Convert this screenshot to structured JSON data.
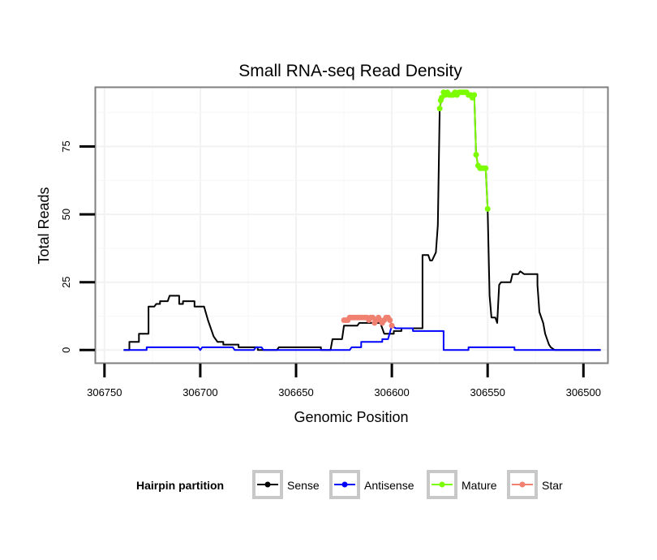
{
  "chart_data": {
    "type": "line",
    "title": "Small RNA-seq Read Density",
    "xlabel": "Genomic Position",
    "ylabel": "Total Reads",
    "x_reversed": true,
    "xlim": [
      306755,
      306487
    ],
    "ylim": [
      -5,
      97
    ],
    "x_ticks": [
      306750,
      306700,
      306650,
      306600,
      306550,
      306500
    ],
    "y_ticks": [
      0,
      25,
      50,
      75
    ],
    "grid": true,
    "legend": {
      "title": "Hairpin partition",
      "position": "bottom",
      "entries": [
        {
          "name": "Sense",
          "color": "#000000"
        },
        {
          "name": "Antisense",
          "color": "#0000ff"
        },
        {
          "name": "Mature",
          "color": "#7cfc00"
        },
        {
          "name": "Star",
          "color": "#f08070"
        }
      ]
    },
    "series": [
      {
        "name": "Sense",
        "color": "#000000",
        "points": [
          [
            306740,
            0
          ],
          [
            306737,
            0
          ],
          [
            306737,
            3
          ],
          [
            306732,
            3
          ],
          [
            306732,
            6
          ],
          [
            306727,
            6
          ],
          [
            306727,
            16
          ],
          [
            306724,
            16
          ],
          [
            306723,
            17
          ],
          [
            306721,
            17
          ],
          [
            306721,
            18
          ],
          [
            306717,
            18
          ],
          [
            306716,
            20
          ],
          [
            306711,
            20
          ],
          [
            306711,
            17
          ],
          [
            306709,
            17
          ],
          [
            306709,
            18
          ],
          [
            306703,
            18
          ],
          [
            306703,
            16
          ],
          [
            306698,
            16
          ],
          [
            306696,
            11
          ],
          [
            306694,
            7
          ],
          [
            306693,
            5
          ],
          [
            306691,
            3
          ],
          [
            306688,
            3
          ],
          [
            306688,
            2
          ],
          [
            306680,
            2
          ],
          [
            306680,
            1
          ],
          [
            306670,
            1
          ],
          [
            306670,
            0
          ],
          [
            306660,
            0
          ],
          [
            306659,
            1
          ],
          [
            306637,
            1
          ],
          [
            306637,
            0
          ],
          [
            306632,
            0
          ],
          [
            306631,
            4
          ],
          [
            306626,
            4
          ],
          [
            306625,
            9
          ],
          [
            306618,
            9
          ],
          [
            306617,
            10
          ],
          [
            306606,
            10
          ],
          [
            306605,
            8
          ],
          [
            306604,
            6
          ],
          [
            306599,
            6
          ],
          [
            306599,
            7
          ],
          [
            306595,
            7
          ],
          [
            306595,
            8
          ],
          [
            306584,
            8
          ],
          [
            306584,
            35
          ],
          [
            306581,
            35
          ],
          [
            306580,
            33
          ],
          [
            306579,
            33
          ],
          [
            306577,
            36
          ],
          [
            306576,
            46
          ],
          [
            306575,
            89
          ],
          [
            306574,
            93
          ],
          [
            306573,
            95
          ],
          [
            306570,
            94
          ],
          [
            306568,
            95
          ],
          [
            306566,
            94
          ],
          [
            306564,
            95
          ],
          [
            306561,
            95
          ],
          [
            306559,
            94
          ],
          [
            306557,
            94
          ],
          [
            306556,
            72
          ],
          [
            306555,
            68
          ],
          [
            306554,
            67
          ],
          [
            306551,
            67
          ],
          [
            306550,
            52
          ],
          [
            306549,
            20
          ],
          [
            306548,
            12
          ],
          [
            306546,
            12
          ],
          [
            306545,
            10
          ],
          [
            306544,
            24
          ],
          [
            306543,
            25
          ],
          [
            306538,
            25
          ],
          [
            306537,
            28
          ],
          [
            306534,
            28
          ],
          [
            306533,
            29
          ],
          [
            306531,
            28
          ],
          [
            306524,
            28
          ],
          [
            306524,
            24
          ],
          [
            306523,
            14
          ],
          [
            306521,
            10
          ],
          [
            306520,
            6
          ],
          [
            306518,
            2
          ],
          [
            306517,
            1
          ],
          [
            306515,
            0
          ],
          [
            306491,
            0
          ]
        ]
      },
      {
        "name": "Antisense",
        "color": "#0000ff",
        "points": [
          [
            306740,
            0
          ],
          [
            306728,
            0
          ],
          [
            306728,
            1
          ],
          [
            306701,
            1
          ],
          [
            306700,
            0
          ],
          [
            306699,
            1
          ],
          [
            306683,
            1
          ],
          [
            306682,
            0
          ],
          [
            306672,
            0
          ],
          [
            306671,
            1
          ],
          [
            306668,
            1
          ],
          [
            306667,
            0
          ],
          [
            306622,
            0
          ],
          [
            306621,
            1
          ],
          [
            306616,
            1
          ],
          [
            306616,
            3
          ],
          [
            306605,
            3
          ],
          [
            306605,
            4
          ],
          [
            306602,
            4
          ],
          [
            306600,
            9
          ],
          [
            306598,
            8
          ],
          [
            306589,
            8
          ],
          [
            306589,
            7
          ],
          [
            306573,
            7
          ],
          [
            306573,
            0
          ],
          [
            306560,
            0
          ],
          [
            306560,
            1
          ],
          [
            306536,
            1
          ],
          [
            306536,
            0
          ],
          [
            306491,
            0
          ]
        ]
      },
      {
        "name": "Mature",
        "color": "#7cfc00",
        "points": [
          [
            306575,
            89
          ],
          [
            306574.5,
            92
          ],
          [
            306574,
            93
          ],
          [
            306573,
            95
          ],
          [
            306572,
            94
          ],
          [
            306571,
            95
          ],
          [
            306570,
            94
          ],
          [
            306569,
            94
          ],
          [
            306568,
            94
          ],
          [
            306567,
            95
          ],
          [
            306566,
            94
          ],
          [
            306565,
            95
          ],
          [
            306564,
            95
          ],
          [
            306563,
            95
          ],
          [
            306562,
            95
          ],
          [
            306561,
            95
          ],
          [
            306560,
            94
          ],
          [
            306559,
            94
          ],
          [
            306558,
            93
          ],
          [
            306557,
            94
          ],
          [
            306556,
            72
          ],
          [
            306555,
            68
          ],
          [
            306554,
            67
          ],
          [
            306553,
            67
          ],
          [
            306552,
            67
          ],
          [
            306551,
            67
          ],
          [
            306550,
            52
          ]
        ]
      },
      {
        "name": "Star",
        "color": "#f08070",
        "points": [
          [
            306625,
            11
          ],
          [
            306624,
            11
          ],
          [
            306623,
            11
          ],
          [
            306622,
            12
          ],
          [
            306621,
            12
          ],
          [
            306620,
            12
          ],
          [
            306619,
            12
          ],
          [
            306618,
            12
          ],
          [
            306617,
            12
          ],
          [
            306616,
            12
          ],
          [
            306615,
            12
          ],
          [
            306614,
            12
          ],
          [
            306613,
            12
          ],
          [
            306612,
            11
          ],
          [
            306611,
            12
          ],
          [
            306610,
            12
          ],
          [
            306609,
            10
          ],
          [
            306608,
            11
          ],
          [
            306607,
            12
          ],
          [
            306606,
            11
          ],
          [
            306605,
            10
          ],
          [
            306604,
            11
          ],
          [
            306603,
            12
          ],
          [
            306602,
            12
          ],
          [
            306601,
            11
          ],
          [
            306600,
            9
          ]
        ]
      }
    ]
  }
}
